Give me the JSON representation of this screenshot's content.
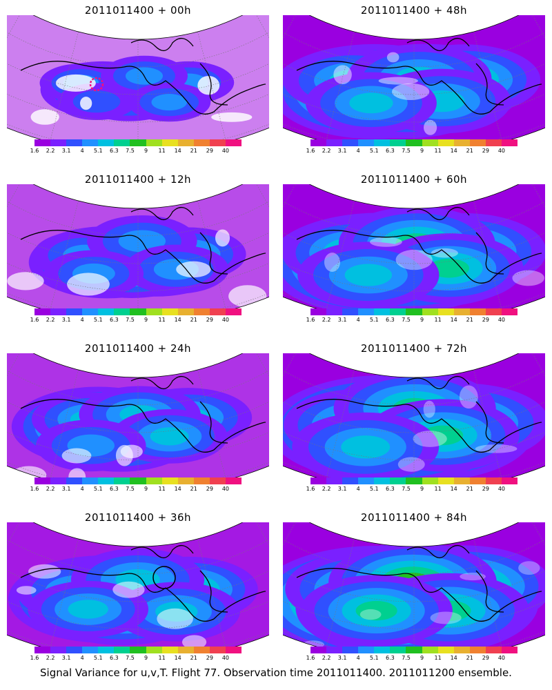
{
  "panels": [
    {
      "title": "2011011400 + 00h",
      "spread": 0.25
    },
    {
      "title": "2011011400 + 48h",
      "spread": 0.75
    },
    {
      "title": "2011011400 + 12h",
      "spread": 0.45
    },
    {
      "title": "2011011400 + 60h",
      "spread": 0.85
    },
    {
      "title": "2011011400 + 24h",
      "spread": 0.55
    },
    {
      "title": "2011011400 + 72h",
      "spread": 0.9
    },
    {
      "title": "2011011400 + 36h",
      "spread": 0.65
    },
    {
      "title": "2011011400 + 84h",
      "spread": 0.95
    }
  ],
  "colorbar": {
    "labels": [
      "1.6",
      "2.2",
      "3.1",
      "4",
      "5.1",
      "6.3",
      "7.5",
      "9",
      "11",
      "14",
      "21",
      "29",
      "40"
    ],
    "colors": [
      "#9a00e0",
      "#7a20ff",
      "#3050ff",
      "#2090ff",
      "#00c0e0",
      "#00d090",
      "#20c020",
      "#a0e020",
      "#e8e020",
      "#e8b030",
      "#f08030",
      "#f04050",
      "#f01080"
    ]
  },
  "caption": "Signal Variance for u,v,T. Flight 77. Observation time 2011011400. 2011011200 ensemble."
}
